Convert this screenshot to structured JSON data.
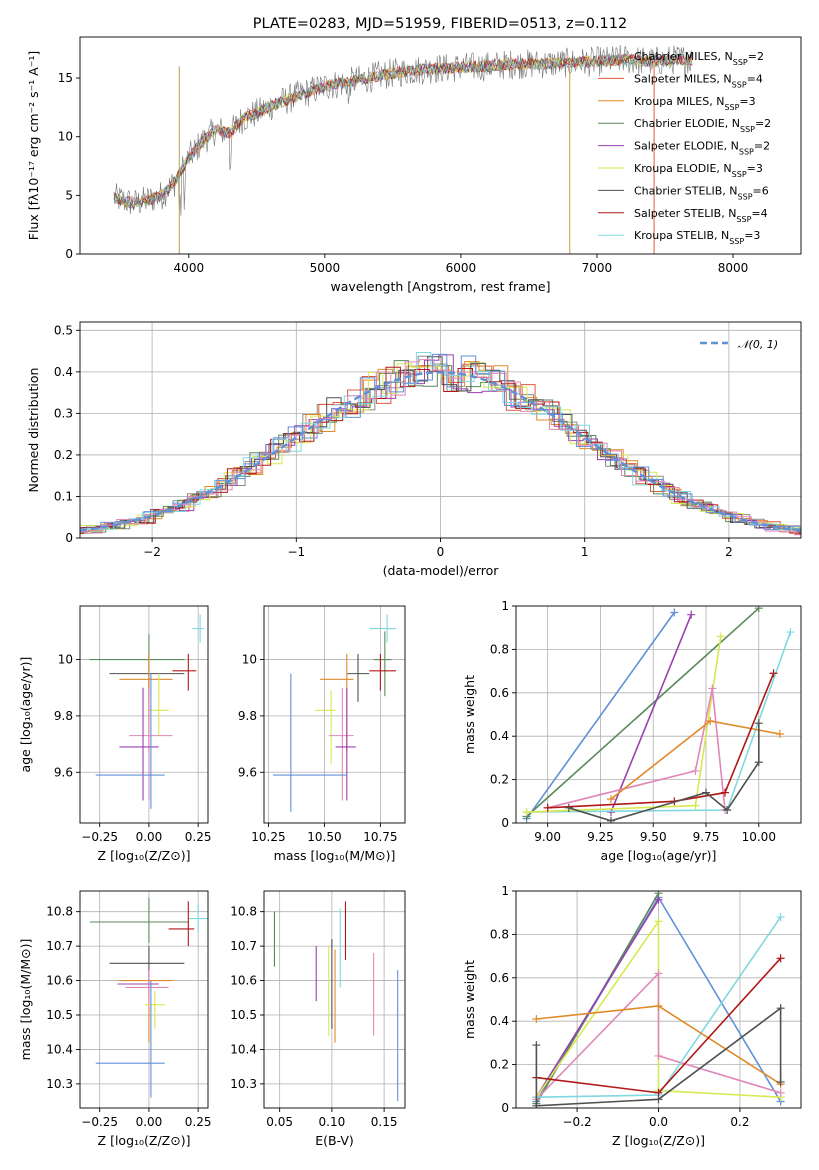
{
  "figure": {
    "title": "PLATE=0283, MJD=51959, FIBERID=0513, z=0.112"
  },
  "colors": {
    "Chabrier MILES": "#8c8c8c",
    "Salpeter MILES": "#e05a3a",
    "Kroupa MILES": "#e08a2a",
    "Chabrier ELODIE": "#5a8a5a",
    "Salpeter ELODIE": "#9a40b0",
    "Kroupa ELODIE": "#d8e850",
    "Chabrier STELIB": "#505050",
    "Salpeter STELIB": "#b01818",
    "Kroupa STELIB": "#80d8e0",
    "blue": "#6090d8",
    "pink": "#e088b8",
    "gauss": "#6090d8"
  },
  "chart_data": [
    {
      "id": "spectrum",
      "type": "line",
      "xlabel": "wavelength [Angstrom, rest frame]",
      "ylabel": "Flux [fλ10⁻¹⁷ erg cm⁻² s⁻¹ A⁻¹]",
      "xlim": [
        3200,
        8500
      ],
      "ylim": [
        0,
        18.5
      ],
      "xticks": [
        4000,
        5000,
        6000,
        7000,
        8000
      ],
      "yticks": [
        0,
        5,
        10,
        15
      ],
      "grid": false,
      "legend_position": "top-right",
      "continuum": {
        "x": [
          3450,
          3600,
          3700,
          3800,
          3900,
          4000,
          4100,
          4200,
          4300,
          4400,
          4500,
          4600,
          4800,
          5000,
          5200,
          5400,
          5600,
          5800,
          6000,
          6200,
          6400,
          6600,
          6800,
          7000,
          7200,
          7400,
          7600
        ],
        "y": [
          4.8,
          4.3,
          4.6,
          5.0,
          6.2,
          8.2,
          9.6,
          10.6,
          10.3,
          11.6,
          12.0,
          12.6,
          13.5,
          14.3,
          14.7,
          15.2,
          15.6,
          15.8,
          15.9,
          16.0,
          16.2,
          16.2,
          16.3,
          16.4,
          16.6,
          16.4,
          16.6
        ]
      },
      "series": [
        {
          "name": "Chabrier MILES, N",
          "sub": "SSP",
          "suffix": "=2",
          "key": "Chabrier MILES"
        },
        {
          "name": "Salpeter MILES, N",
          "sub": "SSP",
          "suffix": "=4",
          "key": "Salpeter MILES"
        },
        {
          "name": "Kroupa MILES, N",
          "sub": "SSP",
          "suffix": "=3",
          "key": "Kroupa MILES"
        },
        {
          "name": "Chabrier ELODIE, N",
          "sub": "SSP",
          "suffix": "=2",
          "key": "Chabrier ELODIE"
        },
        {
          "name": "Salpeter ELODIE, N",
          "sub": "SSP",
          "suffix": "=2",
          "key": "Salpeter ELODIE"
        },
        {
          "name": "Kroupa ELODIE, N",
          "sub": "SSP",
          "suffix": "=3",
          "key": "Kroupa ELODIE"
        },
        {
          "name": "Chabrier STELIB, N",
          "sub": "SSP",
          "suffix": "=6",
          "key": "Chabrier STELIB"
        },
        {
          "name": "Salpeter STELIB, N",
          "sub": "SSP",
          "suffix": "=4",
          "key": "Salpeter STELIB"
        },
        {
          "name": "Kroupa STELIB, N",
          "sub": "SSP",
          "suffix": "=3",
          "key": "Kroupa STELIB"
        }
      ]
    },
    {
      "id": "residuals",
      "type": "bar",
      "xlabel": "(data-model)/error",
      "ylabel": "Normed distribution",
      "xlim": [
        -2.5,
        2.5
      ],
      "ylim": [
        0,
        0.52
      ],
      "xticks": [
        -2,
        -1,
        0,
        1,
        2
      ],
      "yticks": [
        0.0,
        0.1,
        0.2,
        0.3,
        0.4,
        0.5
      ],
      "grid": true,
      "legend_position": "top-right",
      "legend": "𝒩(0, 1)",
      "bin_width": 0.1,
      "series_keys": [
        "Chabrier MILES",
        "Salpeter MILES",
        "Kroupa MILES",
        "Chabrier ELODIE",
        "Salpeter ELODIE",
        "Kroupa ELODIE",
        "Chabrier STELIB",
        "Salpeter STELIB",
        "Kroupa STELIB",
        "blue",
        "pink"
      ]
    },
    {
      "id": "z-age",
      "type": "scatter",
      "xlabel": "Z [log₁₀(Z/Z⊙)]",
      "ylabel": "age  [log₁₀(age/yr)]",
      "xlim": [
        -0.35,
        0.3
      ],
      "ylim": [
        9.42,
        10.19
      ],
      "xticks": [
        -0.25,
        0.0,
        0.25
      ],
      "xticklabels": [
        "−0.25",
        "0.00",
        "0.25"
      ],
      "yticks": [
        9.6,
        9.8,
        10.0
      ],
      "grid": true,
      "points": [
        {
          "key": "Kroupa STELIB",
          "x": 0.26,
          "y": 10.11,
          "ex": [
            0.22,
            0.28
          ],
          "ey": [
            10.06,
            10.16
          ]
        },
        {
          "key": "Chabrier ELODIE",
          "x": 0.0,
          "y": 10.0,
          "ex": [
            -0.3,
            0.18
          ],
          "ey": [
            9.78,
            10.09
          ]
        },
        {
          "key": "Salpeter STELIB",
          "x": 0.2,
          "y": 9.96,
          "ex": [
            0.12,
            0.24
          ],
          "ey": [
            9.89,
            10.02
          ]
        },
        {
          "key": "Chabrier STELIB",
          "x": 0.0,
          "y": 9.95,
          "ex": [
            -0.2,
            0.18
          ],
          "ey": [
            9.85,
            10.02
          ]
        },
        {
          "key": "Kroupa MILES",
          "x": 0.0,
          "y": 9.93,
          "ex": [
            -0.15,
            0.12
          ],
          "ey": [
            9.67,
            10.02
          ]
        },
        {
          "key": "Kroupa ELODIE",
          "x": 0.05,
          "y": 9.82,
          "ex": [
            0.0,
            0.1
          ],
          "ey": [
            9.73,
            9.95
          ]
        },
        {
          "key": "pink",
          "x": 0.0,
          "y": 9.73,
          "ex": [
            -0.1,
            0.12
          ],
          "ey": [
            9.5,
            9.9
          ]
        },
        {
          "key": "Salpeter ELODIE",
          "x": -0.03,
          "y": 9.69,
          "ex": [
            -0.15,
            0.05
          ],
          "ey": [
            9.5,
            9.9
          ]
        },
        {
          "key": "blue",
          "x": 0.01,
          "y": 9.59,
          "ex": [
            -0.27,
            0.08
          ],
          "ey": [
            9.47,
            9.95
          ]
        }
      ]
    },
    {
      "id": "mass-age",
      "type": "scatter",
      "xlabel": "mass [log₁₀(M/M⊙)]",
      "ylabel": "",
      "xlim": [
        10.23,
        10.86
      ],
      "ylim": [
        9.42,
        10.19
      ],
      "xticks": [
        10.25,
        10.5,
        10.75
      ],
      "xticklabels": [
        "10.25",
        "10.50",
        "10.75"
      ],
      "yticks": [
        9.6,
        9.8,
        10.0
      ],
      "grid": true,
      "points": [
        {
          "key": "Kroupa STELIB",
          "x": 10.78,
          "y": 10.11,
          "ex": [
            10.7,
            10.82
          ],
          "ey": [
            10.06,
            10.16
          ]
        },
        {
          "key": "Chabrier ELODIE",
          "x": 10.77,
          "y": 10.0,
          "ex": [
            10.72,
            10.8
          ],
          "ey": [
            9.87,
            10.1
          ]
        },
        {
          "key": "Salpeter STELIB",
          "x": 10.75,
          "y": 9.96,
          "ex": [
            10.7,
            10.82
          ],
          "ey": [
            9.89,
            10.02
          ]
        },
        {
          "key": "Chabrier STELIB",
          "x": 10.65,
          "y": 9.95,
          "ex": [
            10.6,
            10.7
          ],
          "ey": [
            9.85,
            10.02
          ]
        },
        {
          "key": "Kroupa MILES",
          "x": 10.6,
          "y": 9.93,
          "ex": [
            10.48,
            10.63
          ],
          "ey": [
            9.67,
            10.02
          ]
        },
        {
          "key": "Kroupa ELODIE",
          "x": 10.53,
          "y": 9.82,
          "ex": [
            10.46,
            10.55
          ],
          "ey": [
            9.63,
            9.89
          ]
        },
        {
          "key": "pink",
          "x": 10.58,
          "y": 9.73,
          "ex": [
            10.52,
            10.63
          ],
          "ey": [
            9.5,
            9.9
          ]
        },
        {
          "key": "Salpeter ELODIE",
          "x": 10.6,
          "y": 9.69,
          "ex": [
            10.55,
            10.64
          ],
          "ey": [
            9.5,
            9.9
          ]
        },
        {
          "key": "blue",
          "x": 10.35,
          "y": 9.59,
          "ex": [
            10.27,
            10.6
          ],
          "ey": [
            9.46,
            9.95
          ]
        }
      ]
    },
    {
      "id": "age-weight",
      "type": "line",
      "xlabel": "age  [log₁₀(age/yr)]",
      "ylabel": "mass weight",
      "xlim": [
        8.85,
        10.2
      ],
      "ylim": [
        0,
        1.0
      ],
      "xticks": [
        9.0,
        9.25,
        9.5,
        9.75,
        10.0
      ],
      "xticklabels": [
        "9.00",
        "9.25",
        "9.50",
        "9.75",
        "10.00"
      ],
      "yticks": [
        0.0,
        0.2,
        0.4,
        0.6,
        0.8,
        1.0
      ],
      "grid": true,
      "series": [
        {
          "key": "blue",
          "x": [
            8.9,
            9.6
          ],
          "y": [
            0.02,
            0.97
          ]
        },
        {
          "key": "Chabrier ELODIE",
          "x": [
            8.9,
            10.0
          ],
          "y": [
            0.03,
            0.99
          ]
        },
        {
          "key": "Salpeter ELODIE",
          "x": [
            9.3,
            9.68
          ],
          "y": [
            0.05,
            0.96
          ]
        },
        {
          "key": "Kroupa STELIB",
          "x": [
            8.9,
            9.85,
            10.15
          ],
          "y": [
            0.05,
            0.06,
            0.88
          ]
        },
        {
          "key": "Kroupa ELODIE",
          "x": [
            8.9,
            9.7,
            9.82
          ],
          "y": [
            0.05,
            0.08,
            0.86
          ]
        },
        {
          "key": "pink",
          "x": [
            9.0,
            9.7,
            9.78,
            9.84
          ],
          "y": [
            0.07,
            0.24,
            0.62,
            0.06
          ]
        },
        {
          "key": "Kroupa MILES",
          "x": [
            9.3,
            9.77,
            10.1
          ],
          "y": [
            0.11,
            0.47,
            0.41
          ]
        },
        {
          "key": "Salpeter STELIB",
          "x": [
            9.0,
            9.6,
            9.84,
            10.07
          ],
          "y": [
            0.07,
            0.1,
            0.14,
            0.69
          ]
        },
        {
          "key": "Chabrier STELIB",
          "x": [
            9.1,
            9.3,
            9.75,
            9.85,
            10.0,
            10.0
          ],
          "y": [
            0.07,
            0.01,
            0.14,
            0.06,
            0.28,
            0.46
          ]
        }
      ]
    },
    {
      "id": "z-mass",
      "type": "scatter",
      "xlabel": "Z [log₁₀(Z/Z⊙)]",
      "ylabel": "mass [log₁₀(M/M⊙)]",
      "xlim": [
        -0.35,
        0.3
      ],
      "ylim": [
        10.23,
        10.86
      ],
      "xticks": [
        -0.25,
        0.0,
        0.25
      ],
      "xticklabels": [
        "−0.25",
        "0.00",
        "0.25"
      ],
      "yticks": [
        10.3,
        10.4,
        10.5,
        10.6,
        10.7,
        10.8
      ],
      "grid": true,
      "points": [
        {
          "key": "Kroupa STELIB",
          "x": 0.25,
          "y": 10.78,
          "ex": [
            0.2,
            0.3
          ],
          "ey": [
            10.74,
            10.82
          ]
        },
        {
          "key": "Chabrier ELODIE",
          "x": 0.0,
          "y": 10.77,
          "ex": [
            -0.3,
            0.2
          ],
          "ey": [
            10.71,
            10.84
          ]
        },
        {
          "key": "Salpeter STELIB",
          "x": 0.2,
          "y": 10.75,
          "ex": [
            0.1,
            0.23
          ],
          "ey": [
            10.7,
            10.83
          ]
        },
        {
          "key": "Chabrier STELIB",
          "x": 0.0,
          "y": 10.65,
          "ex": [
            -0.2,
            0.18
          ],
          "ey": [
            10.58,
            10.7
          ]
        },
        {
          "key": "Kroupa MILES",
          "x": 0.0,
          "y": 10.6,
          "ex": [
            -0.15,
            0.12
          ],
          "ey": [
            10.42,
            10.63
          ]
        },
        {
          "key": "Salpeter ELODIE",
          "x": 0.0,
          "y": 10.59,
          "ex": [
            -0.16,
            0.05
          ],
          "ey": [
            10.55,
            10.64
          ]
        },
        {
          "key": "pink",
          "x": 0.0,
          "y": 10.58,
          "ex": [
            -0.12,
            0.1
          ],
          "ey": [
            10.52,
            10.63
          ]
        },
        {
          "key": "Kroupa ELODIE",
          "x": 0.03,
          "y": 10.53,
          "ex": [
            -0.02,
            0.08
          ],
          "ey": [
            10.46,
            10.57
          ]
        },
        {
          "key": "blue",
          "x": 0.01,
          "y": 10.36,
          "ex": [
            -0.27,
            0.08
          ],
          "ey": [
            10.26,
            10.6
          ]
        }
      ]
    },
    {
      "id": "ebv-mass",
      "type": "scatter",
      "xlabel": "E(B-V)",
      "ylabel": "",
      "xlim": [
        0.035,
        0.17
      ],
      "ylim": [
        10.23,
        10.86
      ],
      "xticks": [
        0.05,
        0.1,
        0.15
      ],
      "xticklabels": [
        "0.05",
        "0.10",
        "0.15"
      ],
      "yticks": [
        10.3,
        10.4,
        10.5,
        10.6,
        10.7,
        10.8
      ],
      "grid": true,
      "bars": [
        {
          "key": "Chabrier ELODIE",
          "x": 0.045,
          "ey": [
            10.64,
            10.8
          ]
        },
        {
          "key": "Salpeter ELODIE",
          "x": 0.085,
          "ey": [
            10.54,
            10.7
          ]
        },
        {
          "key": "Kroupa ELODIE",
          "x": 0.097,
          "ey": [
            10.44,
            10.7
          ]
        },
        {
          "key": "Chabrier STELIB",
          "x": 0.1,
          "ey": [
            10.46,
            10.72
          ]
        },
        {
          "key": "Kroupa MILES",
          "x": 0.103,
          "ey": [
            10.42,
            10.69
          ]
        },
        {
          "key": "Kroupa STELIB",
          "x": 0.108,
          "ey": [
            10.58,
            10.81
          ]
        },
        {
          "key": "Salpeter STELIB",
          "x": 0.113,
          "ey": [
            10.66,
            10.83
          ]
        },
        {
          "key": "pink",
          "x": 0.14,
          "ey": [
            10.44,
            10.68
          ]
        },
        {
          "key": "blue",
          "x": 0.163,
          "ey": [
            10.25,
            10.63
          ]
        }
      ]
    },
    {
      "id": "z-weight",
      "type": "line",
      "xlabel": "Z [log₁₀(Z/Z⊙)]",
      "ylabel": "mass weight",
      "xlim": [
        -0.35,
        0.35
      ],
      "ylim": [
        0,
        1.0
      ],
      "xticks": [
        -0.2,
        0.0,
        0.2
      ],
      "xticklabels": [
        "−0.2",
        "0.0",
        "0.2"
      ],
      "yticks": [
        0.0,
        0.2,
        0.4,
        0.6,
        0.8,
        1.0
      ],
      "grid": true,
      "series": [
        {
          "key": "blue",
          "x": [
            -0.3,
            0.0,
            0.3
          ],
          "y": [
            0.03,
            0.97,
            0.03
          ]
        },
        {
          "key": "Chabrier ELODIE",
          "x": [
            -0.3,
            0.0
          ],
          "y": [
            0.02,
            0.99
          ]
        },
        {
          "key": "Salpeter ELODIE",
          "x": [
            -0.3,
            0.0
          ],
          "y": [
            0.05,
            0.96
          ]
        },
        {
          "key": "Kroupa ELODIE",
          "x": [
            -0.3,
            0.0,
            0.0,
            0.3
          ],
          "y": [
            0.05,
            0.86,
            0.08,
            0.05
          ]
        },
        {
          "key": "pink",
          "x": [
            -0.3,
            0.0,
            0.0,
            0.3
          ],
          "y": [
            0.04,
            0.62,
            0.24,
            0.07
          ]
        },
        {
          "key": "Kroupa STELIB",
          "x": [
            -0.3,
            0.0,
            0.3
          ],
          "y": [
            0.05,
            0.06,
            0.88
          ]
        },
        {
          "key": "Kroupa MILES",
          "x": [
            -0.3,
            0.0,
            0.3
          ],
          "y": [
            0.41,
            0.47,
            0.11
          ]
        },
        {
          "key": "Salpeter STELIB",
          "x": [
            -0.3,
            0.0,
            0.3
          ],
          "y": [
            0.14,
            0.07,
            0.69
          ]
        },
        {
          "key": "Chabrier STELIB",
          "x": [
            -0.3,
            -0.3,
            0.0,
            0.3,
            0.3
          ],
          "y": [
            0.29,
            0.01,
            0.04,
            0.46,
            0.12
          ]
        }
      ]
    }
  ]
}
